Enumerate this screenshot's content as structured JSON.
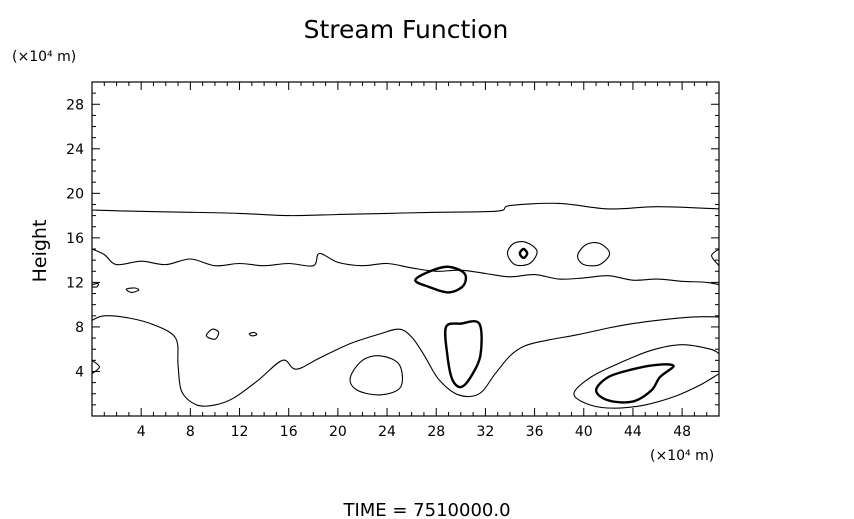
{
  "chart_data": {
    "type": "contour",
    "title": "Stream Function",
    "xlabel": "",
    "ylabel": "Height",
    "x_unit": "(×10⁴ m)",
    "y_unit": "(×10⁴ m)",
    "xlim": [
      0,
      51
    ],
    "ylim": [
      0,
      30
    ],
    "xticks": [
      4,
      8,
      12,
      16,
      20,
      24,
      28,
      32,
      36,
      40,
      44,
      48
    ],
    "yticks": [
      4,
      8,
      12,
      16,
      20,
      24,
      28
    ],
    "grid": false,
    "footer": "TIME  =  7510000.0",
    "contours": [
      {
        "id": "upper-band-top",
        "weight": "thin",
        "closed": false,
        "points": [
          [
            0,
            18.5
          ],
          [
            3,
            18.4
          ],
          [
            8,
            18.3
          ],
          [
            12,
            18.2
          ],
          [
            16,
            18.0
          ],
          [
            20,
            18.1
          ],
          [
            24,
            18.2
          ],
          [
            28,
            18.3
          ],
          [
            33,
            18.4
          ],
          [
            34,
            18.9
          ],
          [
            38,
            19.1
          ],
          [
            42,
            18.6
          ],
          [
            46,
            18.8
          ],
          [
            51,
            18.6
          ]
        ]
      },
      {
        "id": "upper-band-bottom-left",
        "weight": "thin",
        "closed": false,
        "points": [
          [
            0,
            15.0
          ],
          [
            1,
            14.5
          ],
          [
            2,
            13.6
          ],
          [
            4,
            13.9
          ],
          [
            6,
            13.6
          ],
          [
            8,
            14.1
          ],
          [
            10,
            13.5
          ],
          [
            12,
            13.7
          ],
          [
            14,
            13.5
          ],
          [
            16,
            13.7
          ],
          [
            18,
            13.5
          ],
          [
            18.5,
            14.6
          ],
          [
            20,
            13.8
          ],
          [
            22,
            13.5
          ],
          [
            24,
            13.7
          ],
          [
            26,
            13.3
          ],
          [
            28,
            13.0
          ],
          [
            30,
            13.1
          ],
          [
            32,
            12.8
          ],
          [
            34,
            12.5
          ],
          [
            36,
            12.7
          ],
          [
            38,
            12.3
          ],
          [
            40,
            12.4
          ],
          [
            42,
            12.6
          ],
          [
            44,
            12.2
          ],
          [
            46,
            12.3
          ],
          [
            48,
            12.1
          ],
          [
            50,
            12.0
          ],
          [
            51,
            11.8
          ]
        ]
      },
      {
        "id": "small-left-edge-upper",
        "weight": "thin",
        "closed": false,
        "points": [
          [
            0,
            11.8
          ],
          [
            0.5,
            11.9
          ],
          [
            0.4,
            11.6
          ],
          [
            0,
            11.6
          ]
        ]
      },
      {
        "id": "tiny-eddy-a",
        "weight": "thin",
        "closed": true,
        "points": [
          [
            2.8,
            11.4
          ],
          [
            3.5,
            11.5
          ],
          [
            3.8,
            11.3
          ],
          [
            3.2,
            11.1
          ]
        ]
      },
      {
        "id": "eddy-35",
        "weight": "thin",
        "closed": true,
        "points": [
          [
            33.8,
            14.6
          ],
          [
            34.3,
            15.5
          ],
          [
            35.3,
            15.6
          ],
          [
            36.2,
            14.8
          ],
          [
            35.6,
            13.7
          ],
          [
            34.4,
            13.6
          ]
        ]
      },
      {
        "id": "eddy-35-inner",
        "weight": "thick",
        "closed": true,
        "points": [
          [
            34.8,
            14.6
          ],
          [
            35.1,
            15.0
          ],
          [
            35.4,
            14.6
          ],
          [
            35.1,
            14.2
          ]
        ]
      },
      {
        "id": "eddy-41",
        "weight": "thin",
        "closed": true,
        "points": [
          [
            39.5,
            14.4
          ],
          [
            40.2,
            15.4
          ],
          [
            41.3,
            15.5
          ],
          [
            42.1,
            14.6
          ],
          [
            41.3,
            13.6
          ],
          [
            40.0,
            13.6
          ]
        ]
      },
      {
        "id": "right-edge-eddy",
        "weight": "thin",
        "closed": false,
        "points": [
          [
            51,
            15.0
          ],
          [
            50.4,
            14.4
          ],
          [
            51,
            13.5
          ]
        ]
      },
      {
        "id": "thick-eddy-29",
        "weight": "thick",
        "closed": true,
        "points": [
          [
            26.3,
            12.2
          ],
          [
            27.5,
            13.0
          ],
          [
            29.0,
            13.4
          ],
          [
            30.3,
            12.8
          ],
          [
            30.2,
            11.7
          ],
          [
            29.0,
            11.1
          ],
          [
            27.4,
            11.6
          ]
        ]
      },
      {
        "id": "lower-region-boundary",
        "weight": "thin",
        "closed": false,
        "points": [
          [
            0,
            8.6
          ],
          [
            1,
            9.0
          ],
          [
            3,
            8.8
          ],
          [
            5,
            8.2
          ],
          [
            6.8,
            7.0
          ],
          [
            7,
            4.5
          ],
          [
            7.3,
            2.2
          ],
          [
            8.5,
            1.0
          ],
          [
            10,
            1.0
          ],
          [
            11.5,
            1.6
          ],
          [
            13.5,
            3.2
          ],
          [
            15.5,
            5.0
          ],
          [
            16.6,
            4.2
          ],
          [
            18.5,
            5.2
          ],
          [
            21,
            6.5
          ],
          [
            23.5,
            7.4
          ],
          [
            25,
            7.8
          ],
          [
            26,
            7.1
          ],
          [
            27,
            5.5
          ],
          [
            28.2,
            3.3
          ],
          [
            29.8,
            1.9
          ],
          [
            31.5,
            2.0
          ],
          [
            32.8,
            3.8
          ],
          [
            34,
            5.4
          ],
          [
            35.2,
            6.3
          ],
          [
            37,
            6.8
          ],
          [
            39.5,
            7.3
          ],
          [
            42,
            7.9
          ],
          [
            44,
            8.3
          ],
          [
            46,
            8.6
          ],
          [
            49,
            8.9
          ],
          [
            51,
            8.9
          ]
        ]
      },
      {
        "id": "small-left-edge-lower",
        "weight": "thin",
        "closed": false,
        "points": [
          [
            0,
            5.0
          ],
          [
            0.6,
            4.4
          ],
          [
            0,
            3.8
          ]
        ]
      },
      {
        "id": "tiny-eddy-b",
        "weight": "thin",
        "closed": true,
        "points": [
          [
            9.3,
            7.2
          ],
          [
            9.8,
            7.8
          ],
          [
            10.3,
            7.5
          ],
          [
            10.0,
            6.9
          ]
        ]
      },
      {
        "id": "tiny-eddy-c",
        "weight": "thin",
        "closed": true,
        "points": [
          [
            12.8,
            7.4
          ],
          [
            13.2,
            7.5
          ],
          [
            13.4,
            7.3
          ],
          [
            13.0,
            7.2
          ]
        ]
      },
      {
        "id": "eddy-23",
        "weight": "thin",
        "closed": true,
        "points": [
          [
            21.0,
            3.4
          ],
          [
            22.0,
            5.0
          ],
          [
            23.5,
            5.4
          ],
          [
            25.0,
            4.6
          ],
          [
            25.1,
            2.6
          ],
          [
            23.5,
            1.9
          ],
          [
            21.6,
            2.3
          ]
        ]
      },
      {
        "id": "thick-eddy-30",
        "weight": "thick",
        "closed": true,
        "points": [
          [
            28.8,
            8.0
          ],
          [
            30.0,
            8.3
          ],
          [
            31.5,
            8.3
          ],
          [
            31.6,
            5.5
          ],
          [
            30.8,
            3.5
          ],
          [
            30.0,
            2.6
          ],
          [
            29.3,
            3.3
          ],
          [
            28.9,
            5.5
          ]
        ]
      },
      {
        "id": "outer-eddy-44",
        "weight": "thin",
        "closed": false,
        "points": [
          [
            51,
            3.8
          ],
          [
            49.5,
            2.8
          ],
          [
            47.5,
            1.8
          ],
          [
            45,
            1.0
          ],
          [
            42.5,
            0.7
          ],
          [
            40.5,
            1.0
          ],
          [
            39.2,
            2.0
          ],
          [
            40.6,
            3.5
          ],
          [
            43,
            4.8
          ],
          [
            45.5,
            5.9
          ],
          [
            48,
            6.4
          ],
          [
            50.3,
            6.0
          ],
          [
            51,
            5.6
          ]
        ]
      },
      {
        "id": "thick-eddy-44",
        "weight": "thick",
        "closed": true,
        "points": [
          [
            41.0,
            2.3
          ],
          [
            42.0,
            1.4
          ],
          [
            44.0,
            1.3
          ],
          [
            45.5,
            2.3
          ],
          [
            46.2,
            3.5
          ],
          [
            47.3,
            4.5
          ],
          [
            46.0,
            4.6
          ],
          [
            44.0,
            4.2
          ],
          [
            42.0,
            3.5
          ]
        ]
      }
    ]
  }
}
